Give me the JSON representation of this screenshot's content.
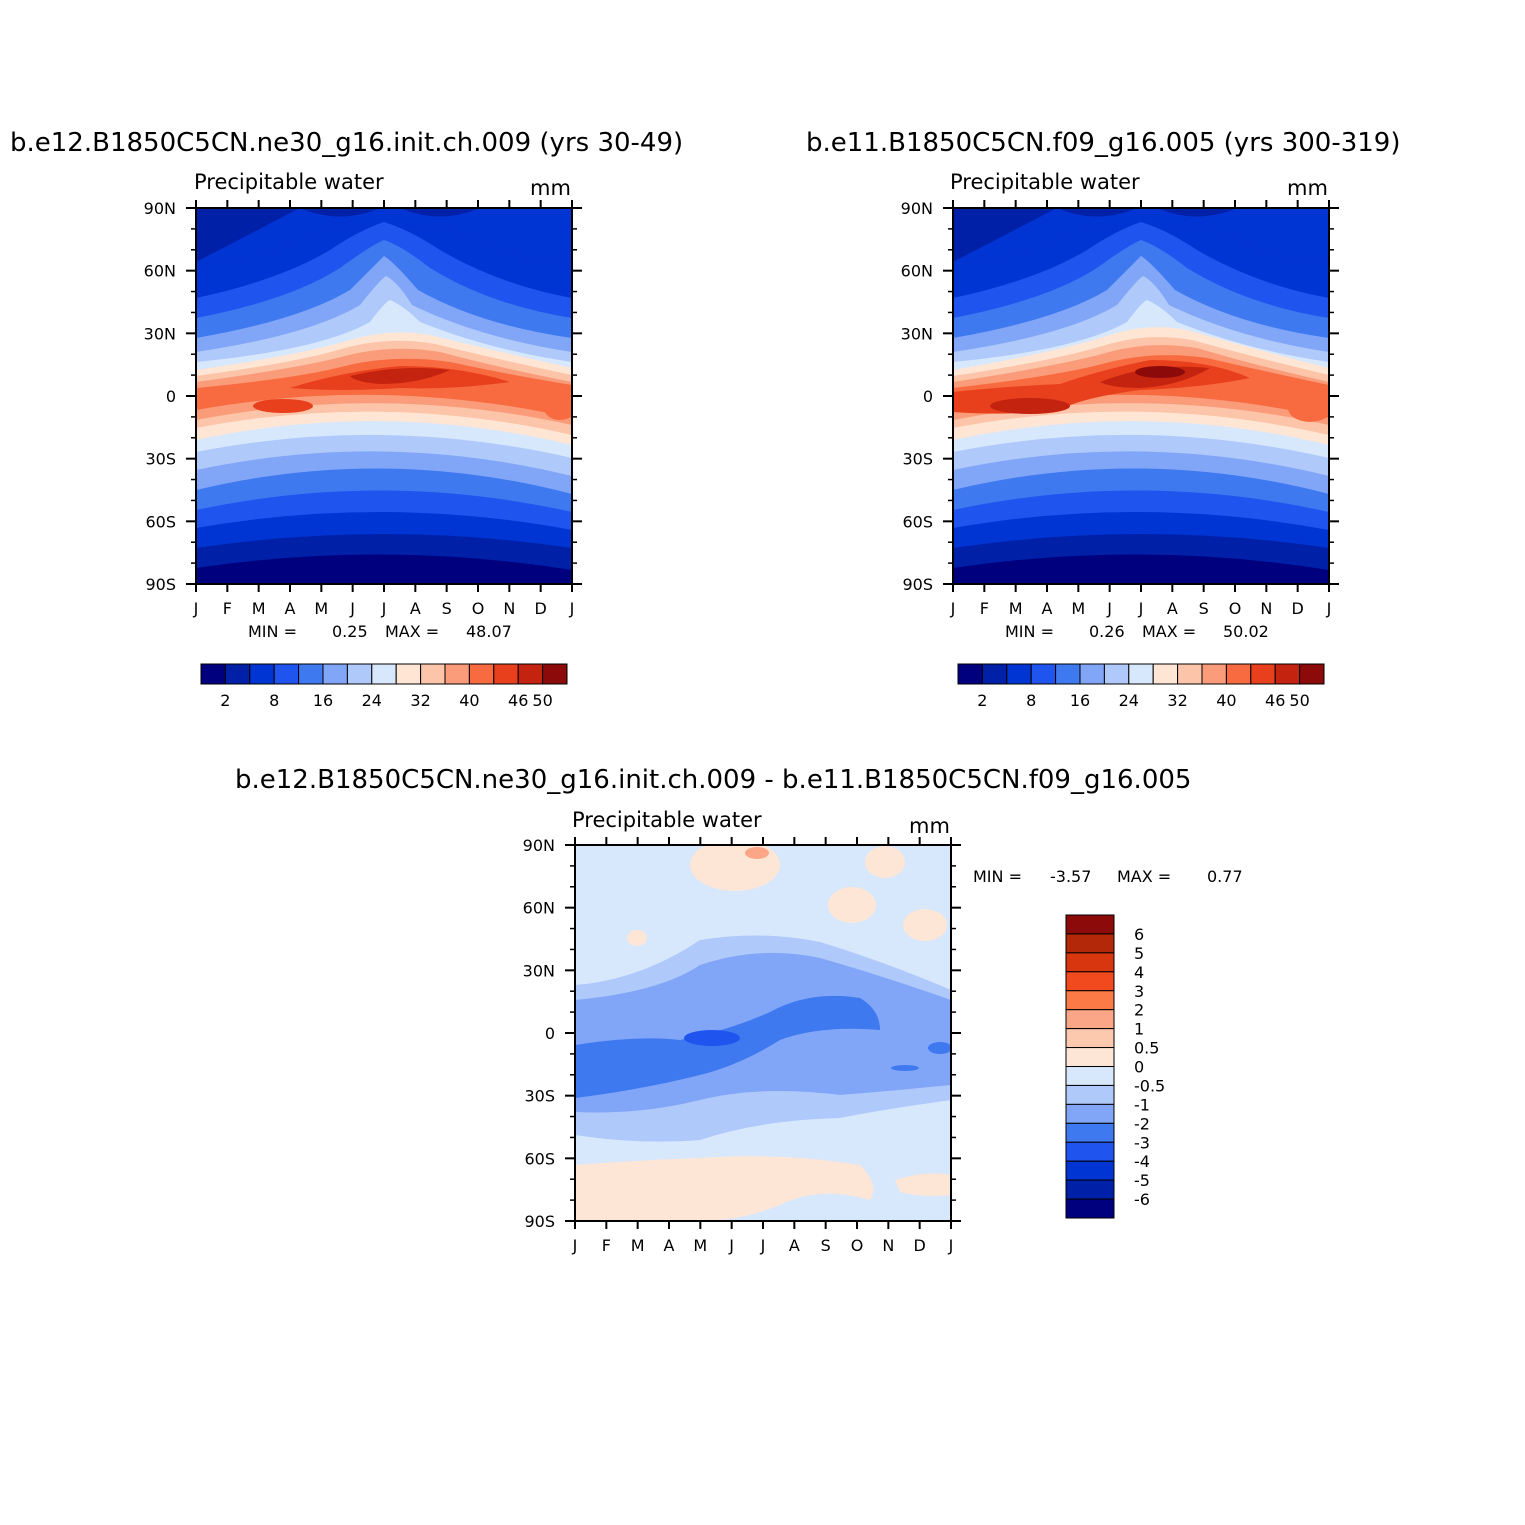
{
  "panels": [
    {
      "title": "b.e12.B1850C5CN.ne30_g16.init.ch.009 (yrs 30-49)",
      "left_label": "Precipitable water",
      "right_label": "mm",
      "min_label": "MIN =",
      "min_value": "0.25",
      "max_label": "MAX =",
      "max_value": "48.07"
    },
    {
      "title": "b.e11.B1850C5CN.f09_g16.005 (yrs 300-319)",
      "left_label": "Precipitable water",
      "right_label": "mm",
      "min_label": "MIN =",
      "min_value": "0.26",
      "max_label": "MAX =",
      "max_value": "50.02"
    },
    {
      "title": "b.e12.B1850C5CN.ne30_g16.init.ch.009 - b.e11.B1850C5CN.f09_g16.005",
      "left_label": "Precipitable water",
      "right_label": "mm",
      "min_label": "MIN =",
      "min_value": "-3.57",
      "max_label": "MAX =",
      "max_value": "0.77"
    }
  ],
  "chart_data": [
    {
      "type": "heatmap",
      "x_ticks": [
        "J",
        "F",
        "M",
        "A",
        "M",
        "J",
        "J",
        "A",
        "S",
        "O",
        "N",
        "D",
        "J"
      ],
      "y_ticks": [
        "90N",
        "60N",
        "30N",
        "0",
        "30S",
        "60S",
        "90S"
      ],
      "ylim": [
        -90,
        90
      ],
      "colorbar": {
        "orientation": "horizontal",
        "colors": [
          "#00007f",
          "#0020a8",
          "#0035d4",
          "#1f55ee",
          "#3f79f0",
          "#82a6f7",
          "#b0c9fb",
          "#d7e8fd",
          "#fee5d4",
          "#fcc4a8",
          "#fa9c7a",
          "#f86b40",
          "#e8401c",
          "#c4240f",
          "#8c0a0a"
        ],
        "labels": [
          "2",
          "8",
          "16",
          "24",
          "32",
          "40",
          "46",
          "50"
        ]
      }
    },
    {
      "type": "heatmap",
      "x_ticks": [
        "J",
        "F",
        "M",
        "A",
        "M",
        "J",
        "J",
        "A",
        "S",
        "O",
        "N",
        "D",
        "J"
      ],
      "y_ticks": [
        "90N",
        "60N",
        "30N",
        "0",
        "30S",
        "60S",
        "90S"
      ],
      "ylim": [
        -90,
        90
      ],
      "colorbar": {
        "orientation": "horizontal",
        "colors": [
          "#00007f",
          "#0020a8",
          "#0035d4",
          "#1f55ee",
          "#3f79f0",
          "#82a6f7",
          "#b0c9fb",
          "#d7e8fd",
          "#fee5d4",
          "#fcc4a8",
          "#fa9c7a",
          "#f86b40",
          "#e8401c",
          "#c4240f",
          "#8c0a0a"
        ],
        "labels": [
          "2",
          "8",
          "16",
          "24",
          "32",
          "40",
          "46",
          "50"
        ]
      }
    },
    {
      "type": "heatmap",
      "x_ticks": [
        "J",
        "F",
        "M",
        "A",
        "M",
        "J",
        "J",
        "A",
        "S",
        "O",
        "N",
        "D",
        "J"
      ],
      "y_ticks": [
        "90N",
        "60N",
        "30N",
        "0",
        "30S",
        "60S",
        "90S"
      ],
      "ylim": [
        -90,
        90
      ],
      "colorbar": {
        "orientation": "vertical",
        "colors": [
          "#8c0a0a",
          "#b22808",
          "#d8360f",
          "#f04a1e",
          "#fc7a46",
          "#fca688",
          "#fcc9ae",
          "#fde6d6",
          "#d7e8fd",
          "#b0c9fb",
          "#82a6f7",
          "#3f79f0",
          "#1f55ee",
          "#0035d4",
          "#0020a8",
          "#00007f"
        ],
        "labels": [
          "6",
          "5",
          "4",
          "3",
          "2",
          "1",
          "0.5",
          "0",
          "-0.5",
          "-1",
          "-2",
          "-3",
          "-4",
          "-5",
          "-6"
        ]
      }
    }
  ]
}
